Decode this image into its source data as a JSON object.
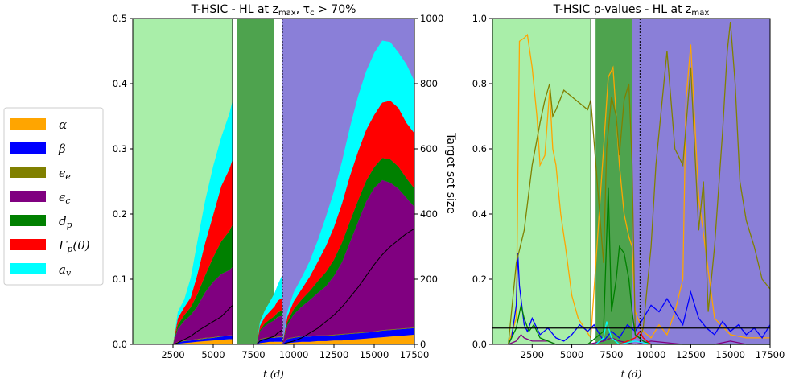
{
  "chart_data": [
    {
      "type": "area",
      "title": "T-HSIC - HL at z_max, τ_c > 70%",
      "xlabel": "t (d)",
      "ylabel": "",
      "ylabel_right": "Target set size",
      "xlim": [
        0,
        17500
      ],
      "ylim": [
        0,
        0.5
      ],
      "ylim_right": [
        0,
        1000
      ],
      "xticks": [
        "2500",
        "5000",
        "7500",
        "10000",
        "12500",
        "15000",
        "17500"
      ],
      "yticks": [
        "0.0",
        "0.1",
        "0.2",
        "0.3",
        "0.4",
        "0.5"
      ],
      "yticks_right": [
        "0",
        "200",
        "400",
        "600",
        "800",
        "1000"
      ],
      "regions": [
        {
          "from": 0,
          "to": 6200,
          "color": "#a9eea9"
        },
        {
          "from": 6500,
          "to": 8800,
          "color": "#4ea34e"
        },
        {
          "from": 9300,
          "to": 17500,
          "color": "#8a7fd8"
        }
      ],
      "vlines": [
        {
          "x": 6200,
          "style": "solid"
        },
        {
          "x": 9300,
          "style": "dotted"
        }
      ],
      "segments": [
        {
          "x": [
            2500,
            2800,
            3200,
            3600,
            4000,
            4500,
            5000,
            5500,
            6000,
            6200
          ],
          "series": [
            {
              "name": "α",
              "values": [
                0,
                0.001,
                0.002,
                0.003,
                0.004,
                0.005,
                0.006,
                0.007,
                0.008,
                0.008
              ]
            },
            {
              "name": "β",
              "values": [
                0,
                0.002,
                0.003,
                0.003,
                0.003,
                0.004,
                0.004,
                0.005,
                0.005,
                0.005
              ]
            },
            {
              "name": "ϵ_e",
              "values": [
                0,
                0.001,
                0.001,
                0.001,
                0.001,
                0.001,
                0.001,
                0.001,
                0.001,
                0.001
              ]
            },
            {
              "name": "ϵ_c",
              "values": [
                0,
                0.02,
                0.03,
                0.038,
                0.05,
                0.07,
                0.085,
                0.095,
                0.1,
                0.105
              ]
            },
            {
              "name": "d_p",
              "values": [
                0,
                0.006,
                0.009,
                0.012,
                0.018,
                0.026,
                0.038,
                0.05,
                0.06,
                0.065
              ]
            },
            {
              "name": "Γ_p(0)",
              "values": [
                0,
                0.01,
                0.012,
                0.015,
                0.03,
                0.05,
                0.065,
                0.085,
                0.095,
                0.1
              ]
            },
            {
              "name": "a_v",
              "values": [
                0,
                0.01,
                0.012,
                0.03,
                0.05,
                0.065,
                0.075,
                0.075,
                0.085,
                0.09
              ]
            }
          ],
          "target_set_size": [
            0,
            5,
            15,
            25,
            40,
            55,
            70,
            85,
            110,
            120
          ]
        },
        {
          "x": [
            7700,
            7900,
            8200,
            8500,
            8800,
            9000,
            9300
          ],
          "series": [
            {
              "name": "α",
              "values": [
                0,
                0.002,
                0.003,
                0.004,
                0.004,
                0.004,
                0.004
              ]
            },
            {
              "name": "β",
              "values": [
                0,
                0.005,
                0.006,
                0.006,
                0.006,
                0.007,
                0.007
              ]
            },
            {
              "name": "ϵ_e",
              "values": [
                0,
                0.001,
                0.001,
                0.001,
                0.001,
                0.001,
                0.001
              ]
            },
            {
              "name": "ϵ_c",
              "values": [
                0,
                0.012,
                0.018,
                0.022,
                0.026,
                0.03,
                0.032
              ]
            },
            {
              "name": "d_p",
              "values": [
                0,
                0.002,
                0.004,
                0.005,
                0.006,
                0.007,
                0.008
              ]
            },
            {
              "name": "Γ_p(0)",
              "values": [
                0,
                0.006,
                0.01,
                0.012,
                0.015,
                0.018,
                0.02
              ]
            },
            {
              "name": "a_v",
              "values": [
                0,
                0.006,
                0.01,
                0.015,
                0.02,
                0.024,
                0.035
              ]
            }
          ],
          "target_set_size": [
            0,
            10,
            15,
            20,
            25,
            35,
            45
          ]
        },
        {
          "x": [
            9300,
            9600,
            10000,
            10500,
            11000,
            11500,
            12000,
            12500,
            13000,
            13500,
            14000,
            14500,
            15000,
            15500,
            16000,
            16500,
            17000,
            17500
          ],
          "series": [
            {
              "name": "α",
              "values": [
                0,
                0.002,
                0.003,
                0.004,
                0.004,
                0.005,
                0.005,
                0.006,
                0.006,
                0.007,
                0.008,
                0.009,
                0.01,
                0.011,
                0.012,
                0.013,
                0.014,
                0.015
              ]
            },
            {
              "name": "β",
              "values": [
                0,
                0.006,
                0.007,
                0.008,
                0.008,
                0.008,
                0.008,
                0.008,
                0.009,
                0.009,
                0.009,
                0.009,
                0.009,
                0.01,
                0.01,
                0.01,
                0.01,
                0.01
              ]
            },
            {
              "name": "ϵ_e",
              "values": [
                0,
                0.001,
                0.001,
                0.001,
                0.001,
                0.001,
                0.001,
                0.001,
                0.001,
                0.001,
                0.001,
                0.001,
                0.001,
                0.001,
                0.001,
                0.001,
                0.001,
                0.001
              ]
            },
            {
              "name": "ϵ_c",
              "values": [
                0,
                0.02,
                0.035,
                0.045,
                0.055,
                0.065,
                0.075,
                0.09,
                0.11,
                0.14,
                0.17,
                0.2,
                0.22,
                0.23,
                0.225,
                0.215,
                0.2,
                0.185
              ]
            },
            {
              "name": "d_p",
              "values": [
                0,
                0.005,
                0.008,
                0.011,
                0.014,
                0.018,
                0.022,
                0.025,
                0.03,
                0.032,
                0.033,
                0.032,
                0.032,
                0.034,
                0.036,
                0.034,
                0.03,
                0.028
              ]
            },
            {
              "name": "Γ_p(0)",
              "values": [
                0,
                0.008,
                0.012,
                0.016,
                0.022,
                0.03,
                0.04,
                0.05,
                0.06,
                0.07,
                0.075,
                0.078,
                0.08,
                0.085,
                0.09,
                0.09,
                0.085,
                0.085
              ]
            },
            {
              "name": "a_v",
              "values": [
                0,
                0.008,
                0.014,
                0.018,
                0.024,
                0.033,
                0.045,
                0.055,
                0.065,
                0.075,
                0.085,
                0.09,
                0.095,
                0.095,
                0.09,
                0.085,
                0.09,
                0.08
              ]
            }
          ],
          "target_set_size": [
            0,
            5,
            10,
            20,
            35,
            50,
            70,
            90,
            115,
            145,
            175,
            210,
            245,
            275,
            300,
            320,
            340,
            355
          ]
        }
      ]
    },
    {
      "type": "line",
      "title": "T-HSIC p-values - HL at z_max",
      "xlabel": "t (d)",
      "ylabel": "",
      "xlim": [
        0,
        17500
      ],
      "ylim": [
        0,
        1.0
      ],
      "xticks": [
        "2500",
        "5000",
        "7500",
        "10000",
        "12500",
        "15000",
        "17500"
      ],
      "yticks": [
        "0.0",
        "0.2",
        "0.4",
        "0.6",
        "0.8",
        "1.0"
      ],
      "regions": [
        {
          "from": 0,
          "to": 6200,
          "color": "#a9eea9"
        },
        {
          "from": 6500,
          "to": 8800,
          "color": "#4ea34e"
        },
        {
          "from": 8800,
          "to": 17500,
          "color": "#8a7fd8"
        }
      ],
      "vlines": [
        {
          "x": 6200,
          "style": "solid"
        },
        {
          "x": 9300,
          "style": "dotted"
        }
      ],
      "hline": 0.05,
      "series": [
        {
          "name": "α",
          "x": [
            1000,
            1500,
            1700,
            2000,
            2200,
            2500,
            2800,
            3000,
            3300,
            3600,
            3800,
            4000,
            4300,
            4600,
            5000,
            5400,
            5800,
            6200,
            7000,
            7300,
            7600,
            7800,
            8000,
            8300,
            8600,
            8800,
            9000,
            9500,
            10000,
            10500,
            11000,
            11500,
            12000,
            12200,
            12500,
            13000,
            14000,
            15000,
            16000,
            17500
          ],
          "y": [
            0.0,
            0.08,
            0.93,
            0.94,
            0.95,
            0.85,
            0.7,
            0.55,
            0.58,
            0.78,
            0.6,
            0.55,
            0.4,
            0.3,
            0.15,
            0.08,
            0.05,
            0.02,
            0.6,
            0.82,
            0.85,
            0.7,
            0.55,
            0.4,
            0.33,
            0.3,
            0.1,
            0.04,
            0.02,
            0.06,
            0.03,
            0.1,
            0.2,
            0.75,
            0.92,
            0.45,
            0.08,
            0.03,
            0.02,
            0.02
          ]
        },
        {
          "name": "β",
          "x": [
            1000,
            1200,
            1500,
            1600,
            1700,
            2000,
            2200,
            2500,
            3000,
            3500,
            4000,
            4500,
            5000,
            5500,
            6000,
            6400,
            7000,
            7500,
            8000,
            8500,
            9000,
            9500,
            10000,
            10500,
            11000,
            11500,
            12000,
            12500,
            13000,
            13500,
            14000,
            14500,
            15000,
            15500,
            16000,
            16500,
            17000,
            17500
          ],
          "y": [
            0.0,
            0.02,
            0.12,
            0.28,
            0.18,
            0.06,
            0.04,
            0.08,
            0.03,
            0.05,
            0.02,
            0.01,
            0.03,
            0.06,
            0.04,
            0.06,
            0.01,
            0.04,
            0.02,
            0.06,
            0.04,
            0.08,
            0.12,
            0.1,
            0.14,
            0.1,
            0.06,
            0.16,
            0.08,
            0.05,
            0.03,
            0.07,
            0.04,
            0.06,
            0.03,
            0.05,
            0.02,
            0.06
          ]
        },
        {
          "name": "ϵ_e",
          "x": [
            1000,
            1500,
            2000,
            2500,
            3000,
            3300,
            3600,
            3800,
            4000,
            4500,
            5000,
            5500,
            6000,
            6200,
            7000,
            7200,
            7500,
            7800,
            8000,
            8300,
            8600,
            8800,
            9000,
            9300,
            9500,
            10000,
            10300,
            10600,
            11000,
            11500,
            12000,
            12500,
            13000,
            13300,
            13600,
            14000,
            14500,
            14800,
            15000,
            15300,
            15600,
            16000,
            16500,
            17000,
            17500
          ],
          "y": [
            0.0,
            0.25,
            0.35,
            0.55,
            0.68,
            0.75,
            0.8,
            0.7,
            0.72,
            0.78,
            0.76,
            0.74,
            0.72,
            0.75,
            0.25,
            0.6,
            0.76,
            0.7,
            0.58,
            0.75,
            0.8,
            0.55,
            0.03,
            0.02,
            0.05,
            0.3,
            0.55,
            0.7,
            0.9,
            0.6,
            0.55,
            0.85,
            0.35,
            0.5,
            0.1,
            0.3,
            0.65,
            0.9,
            0.99,
            0.8,
            0.5,
            0.38,
            0.3,
            0.2,
            0.17
          ]
        },
        {
          "name": "ϵ_c",
          "x": [
            1000,
            1500,
            1800,
            2000,
            2500,
            3000,
            3500,
            4000,
            5000,
            6000,
            7000,
            7500,
            8000,
            9000,
            10000,
            12000,
            14000,
            15000,
            16000,
            17500
          ],
          "y": [
            0.0,
            0.01,
            0.03,
            0.02,
            0.01,
            0.01,
            0.01,
            0.0,
            0.0,
            0.0,
            0.01,
            0.02,
            0.01,
            0.0,
            0.01,
            0.0,
            0.0,
            0.01,
            0.0,
            0.0
          ]
        },
        {
          "name": "d_p",
          "x": [
            1000,
            1500,
            1800,
            2000,
            2300,
            2600,
            3000,
            3500,
            4000,
            5000,
            6000,
            7000,
            7300,
            7500,
            7800,
            8000,
            8300,
            8600,
            8800,
            9000,
            9500,
            10000,
            12000,
            14000,
            17500
          ],
          "y": [
            0.0,
            0.05,
            0.12,
            0.08,
            0.04,
            0.06,
            0.02,
            0.01,
            0.0,
            0.0,
            0.0,
            0.04,
            0.48,
            0.1,
            0.2,
            0.3,
            0.28,
            0.2,
            0.1,
            0.03,
            0.01,
            0.0,
            0.0,
            0.0,
            0.0
          ]
        },
        {
          "name": "Γ_p(0)",
          "x": [
            1000,
            2000,
            3000,
            5000,
            6200,
            7000,
            8000,
            9000,
            9300,
            9500,
            10000,
            12000,
            17500
          ],
          "y": [
            0.0,
            0.0,
            0.0,
            0.0,
            0.0,
            0.0,
            0.0,
            0.02,
            0.04,
            0.02,
            0.0,
            0.0,
            0.0
          ]
        },
        {
          "name": "a_v",
          "x": [
            1000,
            3000,
            5000,
            6500,
            7000,
            7200,
            7500,
            8000,
            9000,
            10000,
            17500
          ],
          "y": [
            0.0,
            0.0,
            0.0,
            0.0,
            0.02,
            0.07,
            0.02,
            0.0,
            0.01,
            0.0,
            0.0
          ]
        }
      ]
    }
  ],
  "legend": {
    "placement": "left",
    "items": [
      {
        "label": "α",
        "color": "#ffa500"
      },
      {
        "label": "β",
        "color": "#0000ff"
      },
      {
        "label": "ϵ_e",
        "color": "#808000"
      },
      {
        "label": "ϵ_c",
        "color": "#800080"
      },
      {
        "label": "d_p",
        "color": "#008000"
      },
      {
        "label": "Γ_p(0)",
        "color": "#ff0000"
      },
      {
        "label": "a_v",
        "color": "#00ffff"
      }
    ]
  }
}
